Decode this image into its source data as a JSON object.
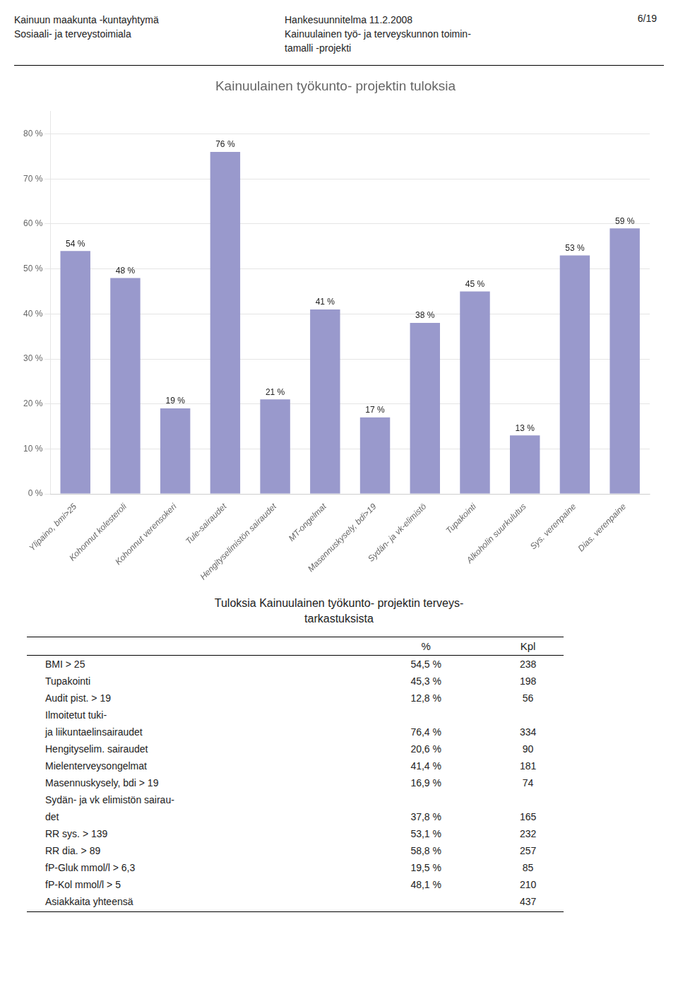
{
  "header": {
    "left": [
      "Kainuun maakunta -kuntayhtymä",
      "Sosiaali- ja terveystoimiala"
    ],
    "right": [
      "Hankesuunnitelma 11.2.2008",
      "Kainuulainen työ- ja terveyskunnon toimin-",
      "tamalli -projekti"
    ],
    "page": "6/19"
  },
  "chart_data": {
    "type": "bar",
    "title": "Kainuulainen työkunto- projektin tuloksia",
    "categories": [
      "Ylipaino, bmi>25",
      "Kohonnut kolesteroli",
      "Kohonnut verensokeri",
      "Tule-sairaudet",
      "Hengityselimistön sairaudet",
      "MT-ongelmat",
      "Masennuskysely, bdi>19",
      "Sydän- ja vk-elimistö",
      "Tupakointi",
      "Alkoholin suurkulutus",
      "Sys. verenpaine",
      "Dias. verenpaine"
    ],
    "values": [
      54,
      48,
      19,
      76,
      21,
      41,
      17,
      38,
      45,
      13,
      53,
      59
    ],
    "value_labels": [
      "54 %",
      "48 %",
      "19 %",
      "76 %",
      "21 %",
      "41 %",
      "17 %",
      "38 %",
      "45 %",
      "13 %",
      "53 %",
      "59 %"
    ],
    "color": "#9999cc",
    "ylim": [
      0,
      85
    ],
    "yticks": [
      {
        "value": 0,
        "label": "0 %"
      },
      {
        "value": 10,
        "label": "10 %"
      },
      {
        "value": 20,
        "label": "20 %"
      },
      {
        "value": 30,
        "label": "30 %"
      },
      {
        "value": 40,
        "label": "40 %"
      },
      {
        "value": 50,
        "label": "50 %"
      },
      {
        "value": 60,
        "label": "60 %"
      },
      {
        "value": 70,
        "label": "70 %"
      },
      {
        "value": 80,
        "label": "80 %"
      }
    ],
    "grid": true,
    "data_labels": true
  },
  "table": {
    "title": [
      "Tuloksia Kainuulainen työkunto- projektin terveys-",
      "tarkastuksista"
    ],
    "columns": [
      "%",
      "Kpl"
    ],
    "rows": [
      [
        "BMI > 25",
        "54,5 %",
        "238"
      ],
      [
        "Tupakointi",
        "45,3 %",
        "198"
      ],
      [
        "Audit pist. > 19",
        "12,8 %",
        "56"
      ],
      [
        "Ilmoitetut tuki-",
        null,
        null
      ],
      [
        "ja liikuntaelinsairaudet",
        "76,4 %",
        "334"
      ],
      [
        "Hengityselim. sairaudet",
        "20,6 %",
        "90"
      ],
      [
        "Mielenterveysongelmat",
        "41,4 %",
        "181"
      ],
      [
        "Masennuskysely, bdi > 19",
        "16,9 %",
        "74"
      ],
      [
        "Sydän- ja vk elimistön sairau-",
        null,
        null
      ],
      [
        "det",
        "37,8 %",
        "165"
      ],
      [
        "RR sys. > 139",
        "53,1 %",
        "232"
      ],
      [
        "RR dia. > 89",
        "58,8 %",
        "257"
      ],
      [
        "fP-Gluk mmol/l > 6,3",
        "19,5 %",
        "85"
      ],
      [
        "fP-Kol mmol/l > 5",
        "48,1 %",
        "210"
      ],
      [
        "Asiakkaita yhteensä",
        null,
        "437"
      ]
    ]
  }
}
